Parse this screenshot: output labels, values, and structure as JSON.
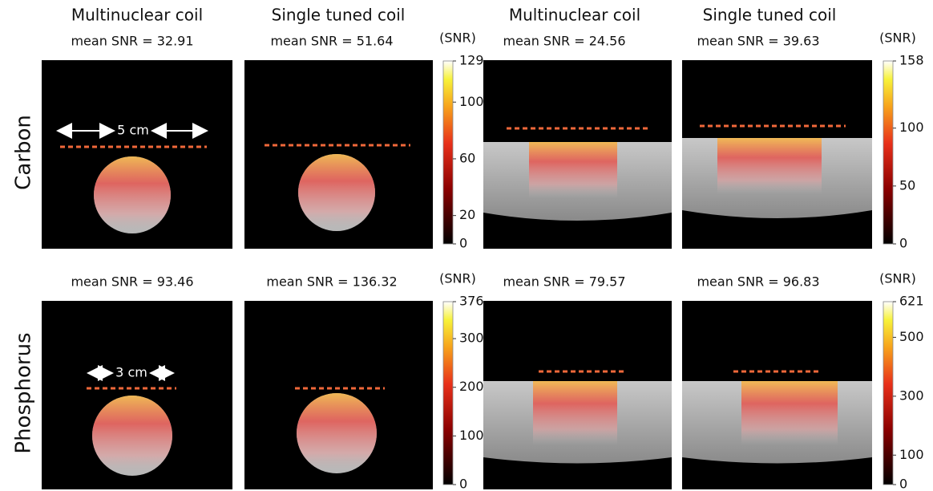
{
  "columns": [
    "Multinuclear coil",
    "Single tuned coil",
    "Multinuclear coil",
    "Single tuned coil"
  ],
  "rows": [
    {
      "label": "Carbon",
      "mean_snr": [
        "mean SNR = 32.91",
        "mean SNR = 51.64",
        "mean SNR = 24.56",
        "mean SNR = 39.63"
      ],
      "scale_bar": "5 cm",
      "colorbars": [
        {
          "unit": "(SNR)",
          "ticks": [
            0,
            20,
            60,
            100,
            129
          ]
        },
        {
          "unit": "(SNR)",
          "ticks": [
            0,
            50,
            100,
            158
          ]
        }
      ]
    },
    {
      "label": "Phosphorus",
      "mean_snr": [
        "mean SNR = 93.46",
        "mean SNR = 136.32",
        "mean SNR = 79.57",
        "mean SNR = 96.83"
      ],
      "scale_bar": "3 cm",
      "colorbars": [
        {
          "unit": "(SNR)",
          "ticks": [
            0,
            100,
            200,
            300,
            376
          ]
        },
        {
          "unit": "(SNR)",
          "ticks": [
            0,
            100,
            300,
            500,
            621
          ]
        }
      ]
    }
  ]
}
